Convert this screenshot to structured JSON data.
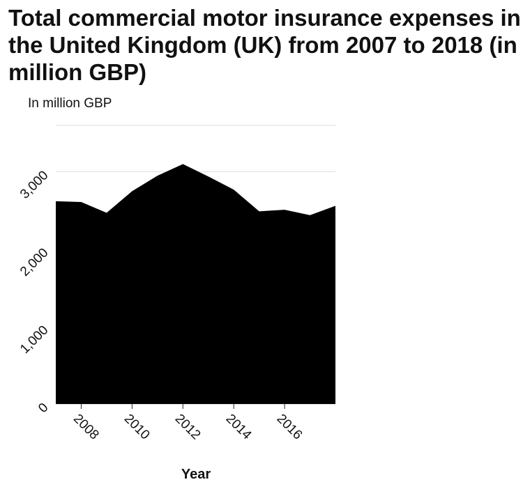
{
  "chart_data": {
    "type": "area",
    "title": "Total commercial motor insurance expenses in the United Kingdom (UK) from 2007 to 2018 (in million GBP)",
    "ylabel": "In million GBP",
    "xlabel": "Year",
    "x": [
      2007,
      2008,
      2009,
      2010,
      2011,
      2012,
      2013,
      2014,
      2015,
      2016,
      2017,
      2018
    ],
    "series": [
      {
        "values": [
          2620,
          2610,
          2470,
          2750,
          2950,
          3100,
          2940,
          2770,
          2490,
          2510,
          2440,
          2560
        ]
      }
    ],
    "xlim": [
      2007,
      2018
    ],
    "ylim": [
      0,
      3600
    ],
    "x_ticks": [
      2008,
      2010,
      2012,
      2014,
      2016
    ],
    "x_tick_labels": [
      "2008",
      "2010",
      "2012",
      "2014",
      "2016"
    ],
    "y_ticks": [
      0,
      1000,
      2000,
      3000
    ],
    "y_tick_labels": [
      "0",
      "1,000",
      "2,000",
      "3,000"
    ],
    "grid": true,
    "legend": "none",
    "fill_color": "#000000",
    "grid_color": "#dddddd"
  }
}
